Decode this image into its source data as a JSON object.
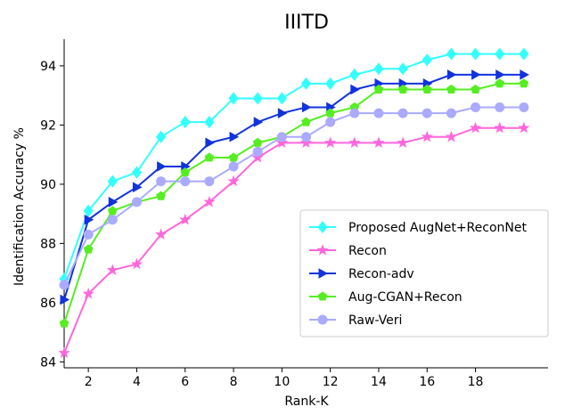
{
  "chart_data": {
    "type": "line",
    "title": "IIITD",
    "xlabel": "Rank-K",
    "ylabel": "Identification Accuracy %",
    "xlim": [
      1,
      21
    ],
    "ylim": [
      83.8,
      94.9
    ],
    "xticks": [
      2,
      4,
      6,
      8,
      10,
      12,
      14,
      16,
      18
    ],
    "yticks": [
      84,
      86,
      88,
      90,
      92,
      94
    ],
    "grid": false,
    "legend_position": "center-right",
    "x": [
      1,
      2,
      3,
      4,
      5,
      6,
      7,
      8,
      9,
      10,
      11,
      12,
      13,
      14,
      15,
      16,
      17,
      18,
      19,
      20
    ],
    "series": [
      {
        "name": "Proposed AugNet+ReconNet",
        "color": "#33ffff",
        "marker": "diamond",
        "values": [
          86.8,
          89.1,
          90.1,
          90.4,
          91.6,
          92.1,
          92.1,
          92.9,
          92.9,
          92.9,
          93.4,
          93.4,
          93.7,
          93.9,
          93.9,
          94.2,
          94.4,
          94.4,
          94.4,
          94.4
        ]
      },
      {
        "name": "Recon",
        "color": "#ff66dd",
        "marker": "star",
        "values": [
          84.3,
          86.3,
          87.1,
          87.3,
          88.3,
          88.8,
          89.4,
          90.1,
          90.9,
          91.4,
          91.4,
          91.4,
          91.4,
          91.4,
          91.4,
          91.6,
          91.6,
          91.9,
          91.9,
          91.9
        ]
      },
      {
        "name": "Recon-adv",
        "color": "#1133dd",
        "marker": "triangle-right",
        "values": [
          86.1,
          88.8,
          89.4,
          89.9,
          90.6,
          90.6,
          91.4,
          91.6,
          92.1,
          92.4,
          92.6,
          92.6,
          93.2,
          93.4,
          93.4,
          93.4,
          93.7,
          93.7,
          93.7,
          93.7
        ]
      },
      {
        "name": "Aug-CGAN+Recon",
        "color": "#55ee22",
        "marker": "pentagon",
        "values": [
          85.3,
          87.8,
          89.1,
          89.4,
          89.6,
          90.4,
          90.9,
          90.9,
          91.4,
          91.6,
          92.1,
          92.4,
          92.6,
          93.2,
          93.2,
          93.2,
          93.2,
          93.2,
          93.4,
          93.4
        ]
      },
      {
        "name": "Raw-Veri",
        "color": "#aaaaff",
        "marker": "circle",
        "values": [
          86.6,
          88.3,
          88.8,
          89.4,
          90.1,
          90.1,
          90.1,
          90.6,
          91.1,
          91.6,
          91.6,
          92.1,
          92.4,
          92.4,
          92.4,
          92.4,
          92.4,
          92.6,
          92.6,
          92.6
        ]
      }
    ]
  }
}
